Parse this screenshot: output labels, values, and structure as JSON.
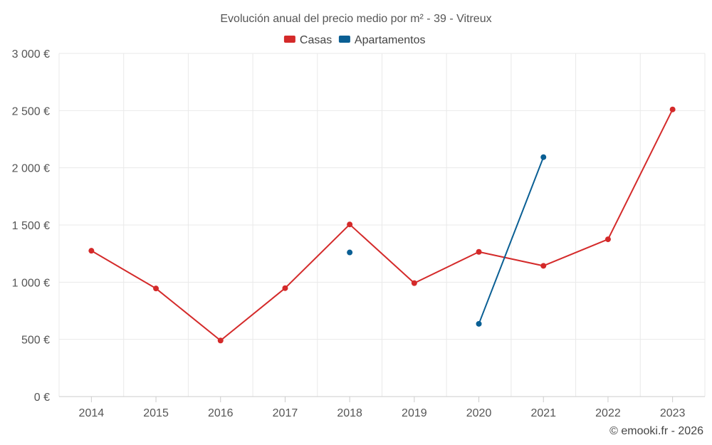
{
  "chart_data": {
    "type": "line",
    "title": "Evolución anual del precio medio por m² - 39 - Vitreux",
    "categories": [
      "2014",
      "2015",
      "2016",
      "2017",
      "2018",
      "2019",
      "2020",
      "2021",
      "2022",
      "2023"
    ],
    "series": [
      {
        "name": "Casas",
        "color": "#d42a2a",
        "values": [
          1275,
          945,
          490,
          948,
          1505,
          992,
          1265,
          1143,
          1375,
          2510
        ]
      },
      {
        "name": "Apartamentos",
        "color": "#0a5f94",
        "values": [
          null,
          null,
          null,
          null,
          1260,
          null,
          636,
          2093,
          null,
          null
        ]
      }
    ],
    "ylim": [
      0,
      3000
    ],
    "yticks": [
      0,
      500,
      1000,
      1500,
      2000,
      2500,
      3000
    ],
    "ytick_labels": [
      "0 €",
      "500 €",
      "1 000 €",
      "1 500 €",
      "2 000 €",
      "2 500 €",
      "3 000 €"
    ],
    "xlabel": "",
    "ylabel": "",
    "grid": true,
    "legend_position": "top-center"
  },
  "credit": "© emooki.fr - 2026"
}
